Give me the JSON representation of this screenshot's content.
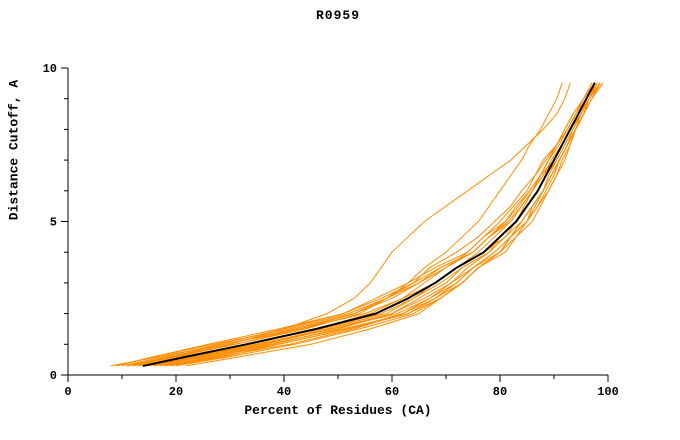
{
  "chart_data": {
    "type": "line",
    "title": "R0959",
    "xlabel": "Percent of Residues (CA)",
    "ylabel": "Distance Cutoff, A",
    "xlim": [
      0,
      100
    ],
    "ylim": [
      0,
      10
    ],
    "x_major_ticks": [
      0,
      20,
      40,
      60,
      80,
      100
    ],
    "x_minor_step": 10,
    "y_major_ticks": [
      0,
      5,
      10
    ],
    "y_minor_step": 1,
    "grid": "off",
    "legend": "none",
    "colors": {
      "model_line": "#ff8c00",
      "reference_line": "#000000",
      "axis": "#000000"
    },
    "y": [
      0.3,
      0.6,
      1.0,
      1.5,
      2.0,
      2.5,
      3.0,
      3.5,
      4.0,
      4.5,
      5.0,
      5.5,
      6.0,
      6.5,
      7.0,
      7.5,
      8.0,
      8.5,
      9.0,
      9.5
    ],
    "series": [
      {
        "name": "model-01",
        "role": "model",
        "color": "#ff8c00",
        "width": 1,
        "x": [
          8,
          17,
          29,
          43,
          55,
          62,
          68,
          72,
          77,
          81,
          84,
          86,
          88,
          89.5,
          91,
          92.5,
          94,
          95.5,
          97,
          98.5
        ]
      },
      {
        "name": "model-02",
        "role": "model",
        "color": "#ff8c00",
        "width": 1,
        "x": [
          12,
          20,
          30,
          40,
          48,
          53,
          56,
          58,
          60,
          63,
          66,
          70,
          74,
          78,
          82,
          85,
          88,
          90.5,
          92,
          93
        ]
      },
      {
        "name": "model-03",
        "role": "model",
        "color": "#ff8c00",
        "width": 1,
        "x": [
          18,
          28,
          41,
          53,
          62,
          67,
          71,
          74,
          78,
          80,
          83,
          84.5,
          86,
          87.5,
          90,
          91.5,
          93,
          95,
          96.5,
          98.5
        ]
      },
      {
        "name": "model-04",
        "role": "model",
        "color": "#ff8c00",
        "width": 1,
        "x": [
          16,
          25,
          37,
          51,
          63,
          69,
          73,
          76,
          80,
          83,
          85,
          87,
          89,
          90.5,
          92,
          93,
          94,
          95.5,
          97,
          98.5
        ]
      },
      {
        "name": "model-05",
        "role": "model",
        "color": "#ff8c00",
        "width": 1,
        "x": [
          11,
          19,
          31,
          44,
          54,
          59,
          64,
          67,
          72,
          76,
          79,
          82,
          84,
          86.5,
          88,
          90.5,
          92,
          93.5,
          95.5,
          97
        ]
      },
      {
        "name": "model-06",
        "role": "model",
        "color": "#ff8c00",
        "width": 1,
        "x": [
          14,
          23,
          35,
          49,
          60,
          65,
          70,
          73,
          78,
          81,
          83,
          85,
          87,
          88.5,
          90,
          91.5,
          93,
          94.5,
          96,
          98
        ]
      },
      {
        "name": "model-07",
        "role": "model",
        "color": "#ff8c00",
        "width": 1,
        "x": [
          10,
          18,
          28,
          40,
          51,
          58,
          64,
          69,
          75,
          78,
          82,
          84,
          86,
          88,
          90,
          91.5,
          93,
          94.5,
          96,
          97.5
        ]
      },
      {
        "name": "model-08",
        "role": "model",
        "color": "#ff8c00",
        "width": 1,
        "x": [
          20,
          30,
          42,
          54,
          64,
          69,
          73,
          76,
          80,
          82,
          85,
          86,
          88,
          89.5,
          91,
          92.5,
          94,
          95.5,
          96.5,
          98
        ]
      },
      {
        "name": "model-09",
        "role": "model",
        "color": "#ff8c00",
        "width": 1,
        "x": [
          13,
          21,
          33,
          47,
          58,
          64,
          68,
          72,
          76,
          79,
          82,
          84,
          86,
          87.5,
          89,
          90.5,
          92.5,
          94,
          95.5,
          97.5
        ]
      },
      {
        "name": "model-10",
        "role": "model",
        "color": "#ff8c00",
        "width": 1,
        "x": [
          17,
          26,
          38,
          50,
          60,
          66,
          71,
          75,
          79,
          82,
          85,
          87,
          88.5,
          90,
          91,
          92.5,
          94,
          95,
          96.5,
          98
        ]
      },
      {
        "name": "model-11",
        "role": "model",
        "color": "#ff8c00",
        "width": 1,
        "x": [
          9,
          16,
          26,
          39,
          51,
          57,
          63,
          68,
          74,
          77,
          81,
          83,
          85.5,
          87.5,
          89,
          91,
          92.5,
          94,
          96,
          97.5
        ]
      },
      {
        "name": "model-12",
        "role": "model",
        "color": "#ff8c00",
        "width": 1,
        "x": [
          15,
          24,
          35,
          48,
          59,
          64,
          69,
          73,
          78,
          80,
          83,
          85,
          87,
          88.5,
          90.5,
          92,
          93.5,
          95,
          96.5,
          98.5
        ]
      },
      {
        "name": "model-13",
        "role": "model",
        "color": "#ff8c00",
        "width": 1,
        "x": [
          12,
          19,
          29,
          42,
          53,
          60,
          65,
          70,
          75,
          78,
          81,
          83.5,
          85.5,
          87.5,
          89,
          90.5,
          92.5,
          94,
          96,
          97.5
        ]
      },
      {
        "name": "model-14",
        "role": "model",
        "color": "#ff8c00",
        "width": 1,
        "x": [
          19,
          29,
          39,
          52,
          62,
          68,
          72,
          75,
          80,
          82,
          84,
          86,
          88,
          89,
          90.5,
          92,
          93.5,
          95,
          96.5,
          98.5
        ]
      },
      {
        "name": "model-15",
        "role": "model",
        "color": "#ff8c00",
        "width": 1,
        "x": [
          22,
          32,
          45,
          56,
          65,
          69,
          73,
          76,
          80,
          82,
          85,
          86.5,
          88,
          89.5,
          91,
          92.5,
          93.5,
          95,
          96.5,
          98.5
        ]
      },
      {
        "name": "model-16",
        "role": "model",
        "color": "#ff8c00",
        "width": 1,
        "x": [
          11,
          20,
          31,
          43,
          53,
          59,
          63,
          66,
          70,
          73,
          76,
          78,
          80,
          82,
          84,
          85.5,
          87.5,
          89,
          90.5,
          91.5
        ]
      },
      {
        "name": "model-17",
        "role": "model",
        "color": "#ff8c00",
        "width": 1,
        "x": [
          16,
          24,
          36,
          49,
          61,
          67,
          72,
          75,
          79,
          82,
          84,
          86,
          88,
          89.5,
          91,
          92.5,
          94,
          95.5,
          97,
          99
        ]
      },
      {
        "name": "model-18",
        "role": "model",
        "color": "#ff8c00",
        "width": 1,
        "x": [
          13,
          22,
          34,
          46,
          56,
          62,
          66,
          70,
          74,
          77,
          80,
          82.5,
          85,
          86.5,
          88.5,
          90.5,
          92,
          93.5,
          95.5,
          97
        ]
      },
      {
        "name": "model-19",
        "role": "model",
        "color": "#ff8c00",
        "width": 1,
        "x": [
          9,
          16,
          27,
          41,
          52,
          59,
          65,
          69,
          75,
          78,
          81.5,
          84,
          86,
          88,
          89.5,
          91.5,
          93,
          94.5,
          96.5,
          98
        ]
      },
      {
        "name": "model-20",
        "role": "model",
        "color": "#ff8c00",
        "width": 1,
        "x": [
          18,
          27,
          39,
          52,
          63,
          68,
          73,
          76,
          81,
          83,
          86,
          87.5,
          89,
          90.5,
          91.5,
          93,
          94,
          95.5,
          97,
          99
        ]
      },
      {
        "name": "reference",
        "role": "reference",
        "color": "#000000",
        "width": 2,
        "x": [
          14,
          22,
          33,
          46,
          57,
          63,
          68,
          72,
          77,
          80,
          83,
          85,
          87,
          88.5,
          90,
          91.5,
          93,
          94.5,
          96,
          97.5
        ]
      }
    ]
  }
}
